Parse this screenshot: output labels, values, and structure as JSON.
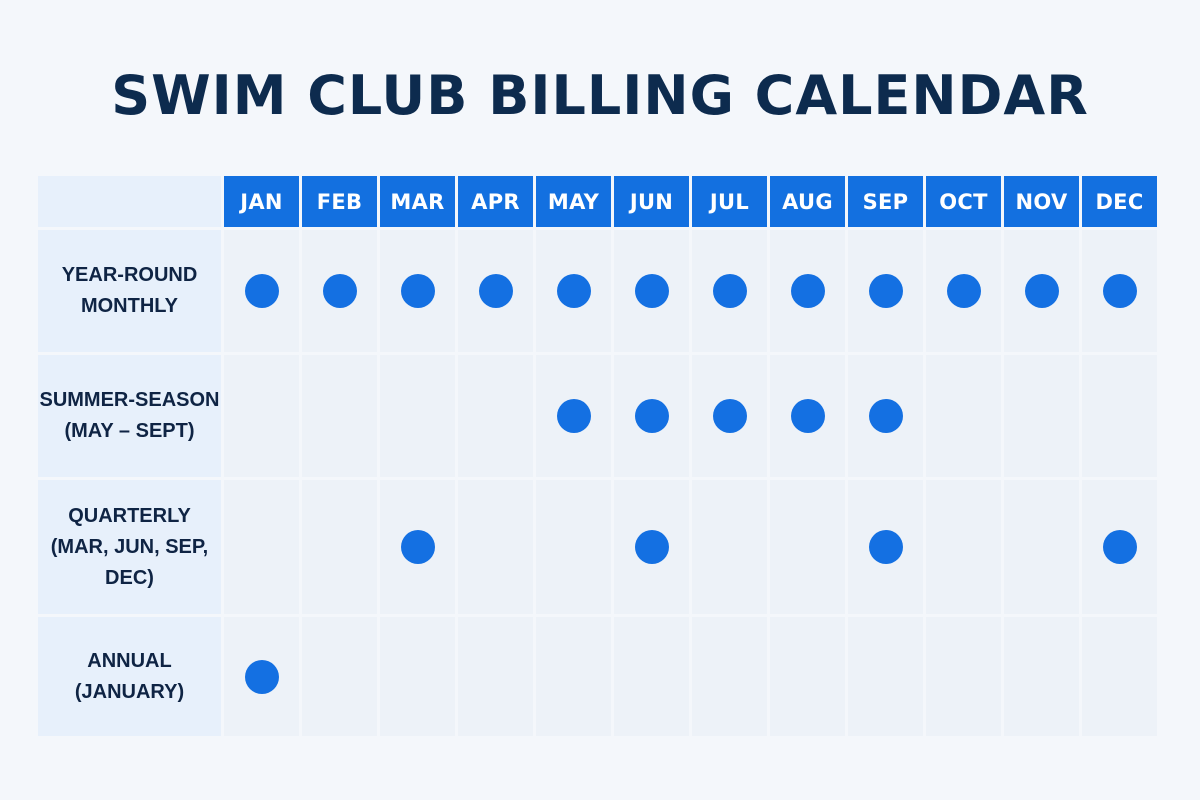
{
  "title": "SWIM CLUB BILLING CALENDAR",
  "months": [
    "JAN",
    "FEB",
    "MAR",
    "APR",
    "MAY",
    "JUN",
    "JUL",
    "AUG",
    "SEP",
    "OCT",
    "NOV",
    "DEC"
  ],
  "plans": [
    {
      "label": "YEAR-ROUND\nMONTHLY",
      "billed": [
        true,
        true,
        true,
        true,
        true,
        true,
        true,
        true,
        true,
        true,
        true,
        true
      ]
    },
    {
      "label": "SUMMER-SEASON\n(MAY – SEPT)",
      "billed": [
        false,
        false,
        false,
        false,
        true,
        true,
        true,
        true,
        true,
        false,
        false,
        false
      ]
    },
    {
      "label": "QUARTERLY\n(MAR, JUN, SEP,\nDEC)",
      "billed": [
        false,
        false,
        true,
        false,
        false,
        true,
        false,
        false,
        true,
        false,
        false,
        true
      ]
    },
    {
      "label": "ANNUAL\n(JANUARY)",
      "billed": [
        true,
        false,
        false,
        false,
        false,
        false,
        false,
        false,
        false,
        false,
        false,
        false
      ]
    }
  ],
  "colors": {
    "header": "#1370e0",
    "dot": "#1470e2",
    "title": "#0d2b4e"
  }
}
